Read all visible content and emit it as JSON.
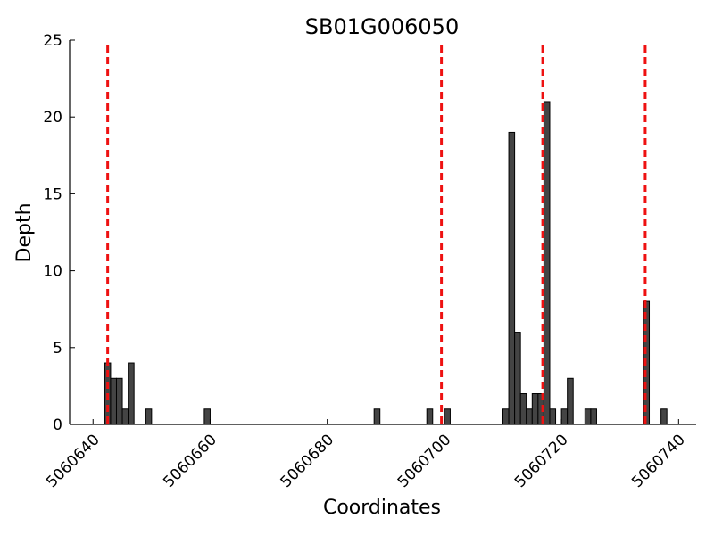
{
  "chart_data": {
    "type": "bar",
    "title": "SB01G006050",
    "xlabel": "Coordinates",
    "ylabel": "Depth",
    "xlim": [
      5060636,
      5060743
    ],
    "ylim": [
      0,
      25
    ],
    "xticks": [
      5060640,
      5060660,
      5060680,
      5060700,
      5060720,
      5060740
    ],
    "yticks": [
      0,
      5,
      10,
      15,
      20,
      25
    ],
    "bar_color": "#444444",
    "bar_edge_color": "#000000",
    "bin_width": 1,
    "bars": [
      {
        "x": 5060642,
        "value": 4
      },
      {
        "x": 5060643,
        "value": 3
      },
      {
        "x": 5060644,
        "value": 3
      },
      {
        "x": 5060645,
        "value": 1
      },
      {
        "x": 5060646,
        "value": 4
      },
      {
        "x": 5060649,
        "value": 1
      },
      {
        "x": 5060659,
        "value": 1
      },
      {
        "x": 5060688,
        "value": 1
      },
      {
        "x": 5060697,
        "value": 1
      },
      {
        "x": 5060700,
        "value": 1
      },
      {
        "x": 5060710,
        "value": 1
      },
      {
        "x": 5060711,
        "value": 19
      },
      {
        "x": 5060712,
        "value": 6
      },
      {
        "x": 5060713,
        "value": 2
      },
      {
        "x": 5060714,
        "value": 1
      },
      {
        "x": 5060715,
        "value": 2
      },
      {
        "x": 5060716,
        "value": 2
      },
      {
        "x": 5060717,
        "value": 21
      },
      {
        "x": 5060718,
        "value": 1
      },
      {
        "x": 5060720,
        "value": 1
      },
      {
        "x": 5060721,
        "value": 3
      },
      {
        "x": 5060724,
        "value": 1
      },
      {
        "x": 5060725,
        "value": 1
      },
      {
        "x": 5060734,
        "value": 8
      },
      {
        "x": 5060737,
        "value": 1
      }
    ],
    "reference_lines": {
      "color": "#ee1111",
      "style": "dashed",
      "x": [
        5060642.5,
        5060699.5,
        5060716.8,
        5060734.3
      ]
    },
    "grid": false
  }
}
